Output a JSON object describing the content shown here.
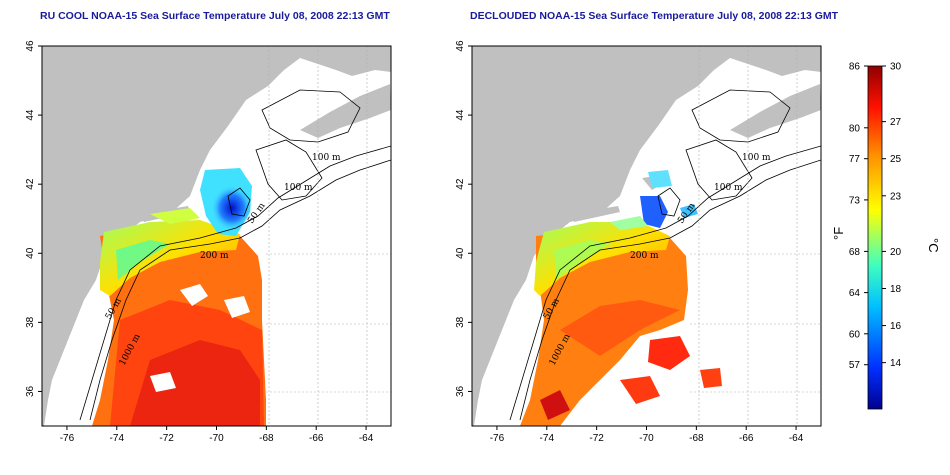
{
  "panels": [
    {
      "id": "left",
      "title": "RU COOL NOAA-15 Sea Surface Temperature July 08, 2008 22:13 GMT"
    },
    {
      "id": "right",
      "title": "DECLOUDED NOAA-15 Sea Surface Temperature July 08, 2008 22:13 GMT"
    }
  ],
  "axes": {
    "lon_ticks": [
      "-76",
      "-74",
      "-72",
      "-70",
      "-68",
      "-66",
      "-64"
    ],
    "lat_ticks": [
      "36",
      "38",
      "40",
      "42",
      "44",
      "46"
    ],
    "lon_range": [
      -77,
      -63
    ],
    "lat_range": [
      35,
      46
    ]
  },
  "contour_labels": [
    "100 m",
    "100 m",
    "50 m",
    "200 m",
    "50 m",
    "1000 m"
  ],
  "colorbar": {
    "celsius_min": 11.5,
    "celsius_max": 30,
    "fahrenheit_ticks": [
      "86",
      "80",
      "77",
      "73",
      "68",
      "64",
      "60",
      "57"
    ],
    "celsius_ticks": [
      "30",
      "27",
      "25",
      "23",
      "20",
      "18",
      "16",
      "14"
    ],
    "unit_f": "°F",
    "unit_c": "°C",
    "colors": [
      "#00008f",
      "#0030ff",
      "#00c0ff",
      "#40ffbf",
      "#ffff00",
      "#ff9000",
      "#ff1000",
      "#8f0000"
    ]
  },
  "colors": {
    "land": "#c0c0c0",
    "grid": "#b0b0b0",
    "title": "#1a1a9c"
  }
}
